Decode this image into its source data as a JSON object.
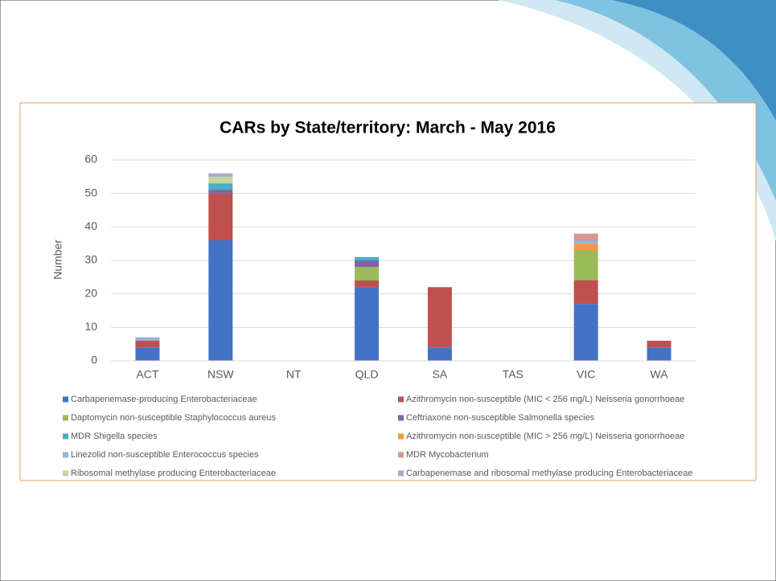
{
  "chart_data": {
    "type": "bar",
    "stacked": true,
    "title": "CARs by State/territory: March - May 2016",
    "y_label": "Number",
    "categories": [
      "ACT",
      "NSW",
      "NT",
      "QLD",
      "SA",
      "TAS",
      "VIC",
      "WA"
    ],
    "ylim": [
      0,
      60
    ],
    "yticks": [
      0,
      10,
      20,
      30,
      40,
      50,
      60
    ],
    "grid": true,
    "legend": "bottom",
    "series": [
      {
        "name": "Carbapenemase-producing Enterobacteriaceae",
        "color": "#4472c4",
        "values": [
          4,
          36,
          0,
          22,
          4,
          0,
          17,
          4
        ]
      },
      {
        "name": "Azithromycin non-susceptible (MIC < 256 mg/L) Neisseria gonorrhoeae",
        "color": "#c0504d",
        "values": [
          2,
          14,
          0,
          2,
          18,
          0,
          7,
          2
        ]
      },
      {
        "name": "Daptomycin non-susceptible Staphylococcus aureus",
        "color": "#9bbb59",
        "values": [
          0,
          0,
          0,
          4,
          0,
          0,
          9,
          0
        ]
      },
      {
        "name": "Ceftriaxone non-susceptible Salmonella species",
        "color": "#8064a2",
        "values": [
          0,
          1,
          0,
          2,
          0,
          0,
          0,
          0
        ]
      },
      {
        "name": "MDR Shigella species",
        "color": "#4bacc6",
        "values": [
          0,
          2,
          0,
          1,
          0,
          0,
          0,
          0
        ]
      },
      {
        "name": "Azithromycin non-susceptible (MIC > 256 mg/L) Neisseria gonorrhoeae",
        "color": "#f79646",
        "values": [
          0,
          0,
          0,
          0,
          0,
          0,
          2,
          0
        ]
      },
      {
        "name": "Linezolid non-susceptible Enterococcus species",
        "color": "#95b3d7",
        "values": [
          1,
          0,
          0,
          0,
          0,
          0,
          1,
          0
        ]
      },
      {
        "name": "MDR Mycobacterium",
        "color": "#d99694",
        "values": [
          0,
          0,
          0,
          0,
          0,
          0,
          2,
          0
        ]
      },
      {
        "name": "Ribosomal methylase producing Enterobacteriaceae",
        "color": "#c3d69b",
        "values": [
          0,
          2,
          0,
          0,
          0,
          0,
          0,
          0
        ]
      },
      {
        "name": "Carbapenemase and ribosomal methylase producing Enterobacteriaceae",
        "color": "#b3a2c7",
        "values": [
          0,
          1,
          0,
          0,
          0,
          0,
          0,
          0
        ]
      }
    ]
  }
}
